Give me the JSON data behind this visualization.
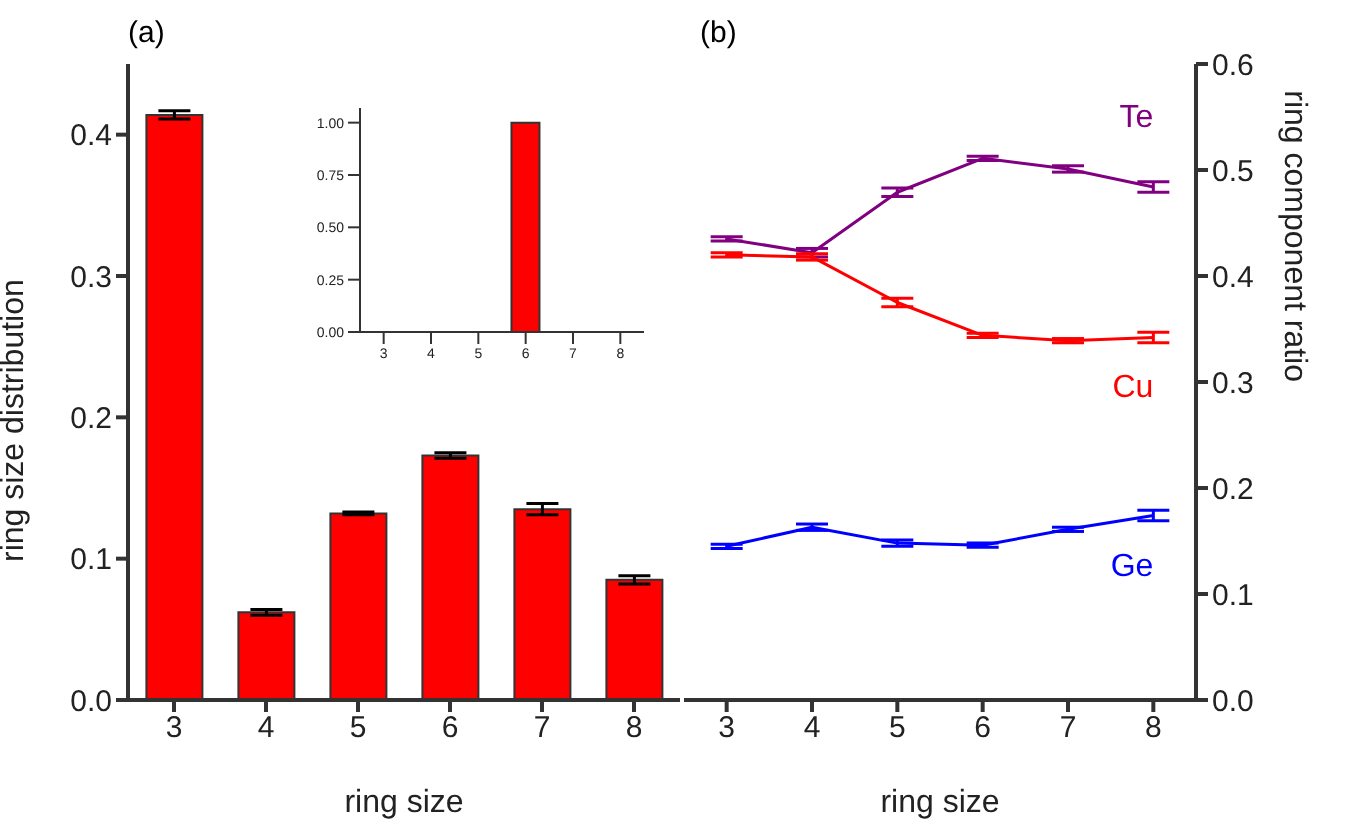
{
  "chart_data": [
    {
      "type": "bar",
      "title": "(a)",
      "xlabel": "ring size",
      "ylabel": "ring size distribution",
      "categories": [
        "3",
        "4",
        "5",
        "6",
        "7",
        "8"
      ],
      "values": [
        0.414,
        0.062,
        0.132,
        0.173,
        0.135,
        0.085
      ],
      "errors": [
        0.003,
        0.002,
        0.001,
        0.002,
        0.004,
        0.003
      ],
      "color": "#ff0000",
      "ylim": [
        0,
        0.45
      ],
      "yticks": [
        {
          "value": 0,
          "label": "0.0"
        },
        {
          "value": 0.1,
          "label": "0.1"
        },
        {
          "value": 0.2,
          "label": "0.2"
        },
        {
          "value": 0.3,
          "label": "0.3"
        },
        {
          "value": 0.4,
          "label": "0.4"
        }
      ]
    },
    {
      "type": "bar",
      "categories": [
        "3",
        "4",
        "5",
        "6",
        "7",
        "8"
      ],
      "values": [
        0,
        0,
        0,
        1,
        0,
        0
      ],
      "color": "#ff0000",
      "ylim": [
        0,
        1.07
      ],
      "yticks": [
        {
          "value": 0,
          "label": "0.00"
        },
        {
          "value": 0.25,
          "label": "0.25"
        },
        {
          "value": 0.5,
          "label": "0.50"
        },
        {
          "value": 0.75,
          "label": "0.75"
        },
        {
          "value": 1,
          "label": "1.00"
        }
      ]
    },
    {
      "type": "line",
      "title": "(b)",
      "xlabel": "ring size",
      "y2label": "ring component ratio",
      "x": [
        3,
        4,
        5,
        6,
        7,
        8
      ],
      "xlim": [
        2.5,
        8.5
      ],
      "xticks": [
        3,
        4,
        5,
        6,
        7,
        8
      ],
      "y2lim": [
        0,
        0.6
      ],
      "y2ticks": [
        {
          "value": 0,
          "label": "0.0"
        },
        {
          "value": 0.1,
          "label": "0.1"
        },
        {
          "value": 0.2,
          "label": "0.2"
        },
        {
          "value": 0.3,
          "label": "0.3"
        },
        {
          "value": 0.4,
          "label": "0.4"
        },
        {
          "value": 0.5,
          "label": "0.5"
        },
        {
          "value": 0.6,
          "label": "0.6"
        }
      ],
      "marker": "none",
      "series": [
        {
          "name": "Te",
          "color": "#800080",
          "axis": "y2",
          "values": [
            0.435,
            0.422,
            0.479,
            0.511,
            0.501,
            0.484
          ],
          "errors": [
            0.002,
            0.004,
            0.004,
            0.002,
            0.003,
            0.005
          ]
        },
        {
          "name": "Cu",
          "color": "#ff0000",
          "axis": "y2",
          "values": [
            0.42,
            0.418,
            0.375,
            0.344,
            0.339,
            0.342
          ],
          "errors": [
            0.002,
            0.003,
            0.004,
            0.002,
            0.002,
            0.005
          ]
        },
        {
          "name": "Ge",
          "color": "#0000ff",
          "axis": "y2",
          "values": [
            0.145,
            0.163,
            0.148,
            0.146,
            0.161,
            0.174
          ],
          "errors": [
            0.002,
            0.003,
            0.003,
            0.002,
            0.002,
            0.005
          ]
        }
      ]
    }
  ]
}
